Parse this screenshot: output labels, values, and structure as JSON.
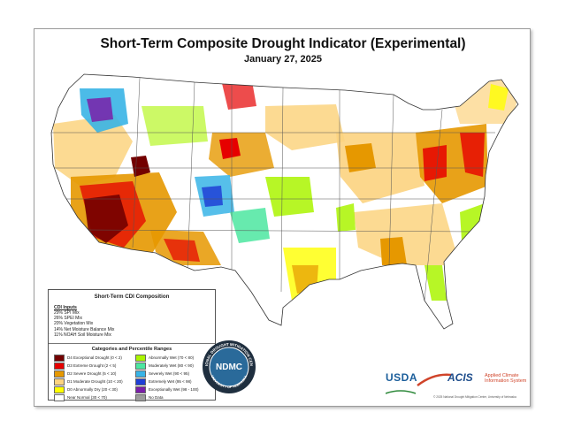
{
  "title": "Short-Term Composite Drought Indicator (Experimental)",
  "date": "January 27, 2025",
  "legend": {
    "title": "Short-Term CDI Composition",
    "inputs_title": "CDI Inputs",
    "inputs": [
      "29% SPI Mix",
      "26% SPEI Mix",
      "20% Vegetation Mix",
      "14% Net Moisture Balance Mix",
      "11% NOAH Soil Moisture Mix"
    ],
    "categories_title": "Categories and Percentile Ranges",
    "categories_left": [
      {
        "label": "D4 Exceptional Drought (0 < 2)",
        "color": "#730000"
      },
      {
        "label": "D3 Extreme Drought (2 < 5)",
        "color": "#e60000"
      },
      {
        "label": "D2 Severe Drought (5 < 10)",
        "color": "#e69800"
      },
      {
        "label": "D1 Moderate Drought (10 < 20)",
        "color": "#fcd37f"
      },
      {
        "label": "D0 Abnormally Dry (20 < 30)",
        "color": "#ffff00"
      },
      {
        "label": "Near Normal (30 < 70)",
        "color": "#ffffff"
      }
    ],
    "categories_right": [
      {
        "label": "Abnormally Wet (70 < 80)",
        "color": "#aaf500"
      },
      {
        "label": "Moderately Wet (80 < 90)",
        "color": "#4ce6a0"
      },
      {
        "label": "Severely Wet (90 < 95)",
        "color": "#38b4e6"
      },
      {
        "label": "Extremely Wet (95 < 98)",
        "color": "#1f3fd6"
      },
      {
        "label": "Exceptionally Wet (98 - 100)",
        "color": "#7a1fa8"
      },
      {
        "label": "No Data",
        "color": "#9c9c9c"
      }
    ]
  },
  "logos": {
    "ndmc": "NDMC",
    "ndmc_ring": "NATIONAL DROUGHT MITIGATION CENTER",
    "ndmc_ring_bottom": "UNIVERSITY OF NEBRASKA",
    "usda": "USDA",
    "acis": "ACIS",
    "acis_line1": "Applied Climate",
    "acis_line2": "Information System"
  },
  "copyright": "© 2025 National Drought Mitigation Center, University of Nebraska"
}
